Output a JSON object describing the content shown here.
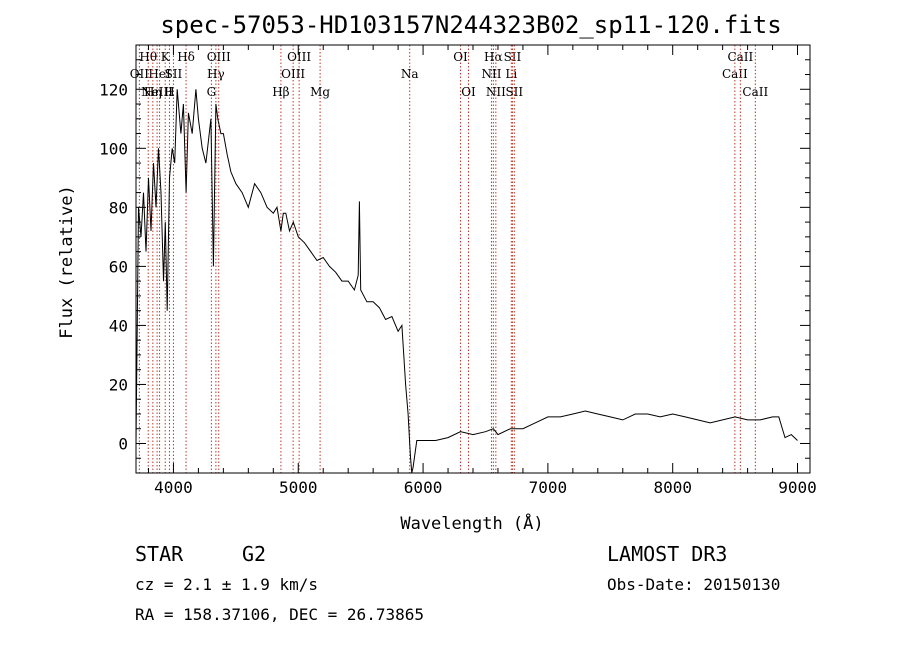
{
  "chart_data": {
    "type": "line",
    "title": "spec-57053-HD103157N244323B02_sp11-120.fits",
    "xlabel": "Wavelength (Å)",
    "ylabel": "Flux (relative)",
    "xlim": [
      3700,
      9100
    ],
    "ylim": [
      -10,
      135
    ],
    "xticks": [
      4000,
      5000,
      6000,
      7000,
      8000,
      9000
    ],
    "yticks": [
      0,
      20,
      40,
      60,
      80,
      100,
      120
    ],
    "series": [
      {
        "name": "spectrum",
        "x": [
          3700,
          3720,
          3740,
          3760,
          3780,
          3800,
          3820,
          3840,
          3860,
          3880,
          3900,
          3920,
          3935,
          3950,
          3968,
          3990,
          4010,
          4030,
          4060,
          4080,
          4101,
          4120,
          4150,
          4180,
          4200,
          4230,
          4260,
          4300,
          4320,
          4340,
          4355,
          4380,
          4400,
          4430,
          4460,
          4500,
          4550,
          4600,
          4650,
          4700,
          4750,
          4800,
          4830,
          4861,
          4880,
          4900,
          4930,
          4960,
          5000,
          5050,
          5100,
          5150,
          5200,
          5250,
          5300,
          5350,
          5400,
          5450,
          5480,
          5490,
          5500,
          5550,
          5600,
          5650,
          5700,
          5750,
          5800,
          5830,
          5860,
          5880,
          5893,
          5900,
          5910,
          5920,
          5950,
          6000,
          6100,
          6200,
          6300,
          6400,
          6500,
          6563,
          6600,
          6700,
          6800,
          6900,
          7000,
          7100,
          7200,
          7300,
          7400,
          7500,
          7600,
          7700,
          7800,
          7900,
          8000,
          8100,
          8200,
          8300,
          8400,
          8500,
          8600,
          8700,
          8800,
          8850,
          8900,
          8950,
          9000
        ],
        "y": [
          0,
          80,
          70,
          85,
          65,
          90,
          72,
          95,
          80,
          100,
          85,
          55,
          75,
          45,
          90,
          100,
          95,
          120,
          105,
          115,
          85,
          112,
          105,
          120,
          110,
          100,
          95,
          110,
          60,
          115,
          110,
          105,
          105,
          98,
          92,
          88,
          85,
          80,
          88,
          85,
          80,
          78,
          80,
          72,
          78,
          78,
          72,
          75,
          70,
          68,
          65,
          62,
          63,
          60,
          58,
          55,
          55,
          52,
          57,
          82,
          52,
          48,
          48,
          46,
          42,
          43,
          38,
          40,
          20,
          10,
          0,
          -5,
          -10,
          -8,
          1,
          1,
          1,
          2,
          4,
          3,
          4,
          5,
          3,
          5,
          5,
          7,
          9,
          9,
          10,
          11,
          10,
          9,
          8,
          10,
          10,
          9,
          10,
          9,
          8,
          7,
          8,
          9,
          8,
          8,
          9,
          9,
          2,
          3,
          1
        ]
      }
    ],
    "line_markers": [
      {
        "wl": 3727,
        "label": "OII",
        "row": 2
      },
      {
        "wl": 3798,
        "label": "Hθ",
        "row": 1
      },
      {
        "wl": 3835,
        "label": "Hη",
        "row": 3
      },
      {
        "wl": 3869,
        "label": "NeIII",
        "row": 3
      },
      {
        "wl": 3889,
        "label": "HeI",
        "row": 2
      },
      {
        "wl": 3934,
        "label": "K",
        "row": 1
      },
      {
        "wl": 3968,
        "label": "H",
        "row": 3
      },
      {
        "wl": 4000,
        "label": "SII",
        "row": 2
      },
      {
        "wl": 4101,
        "label": "Hδ",
        "row": 1
      },
      {
        "wl": 4304,
        "label": "G",
        "row": 3
      },
      {
        "wl": 4340,
        "label": "Hγ",
        "row": 2
      },
      {
        "wl": 4363,
        "label": "OIII",
        "row": 1
      },
      {
        "wl": 4861,
        "label": "Hβ",
        "row": 3
      },
      {
        "wl": 4959,
        "label": "OIII",
        "row": 2
      },
      {
        "wl": 5007,
        "label": "OIII",
        "row": 1
      },
      {
        "wl": 5175,
        "label": "Mg",
        "row": 3
      },
      {
        "wl": 5893,
        "label": "Na",
        "row": 2
      },
      {
        "wl": 6300,
        "label": "OI",
        "row": 1
      },
      {
        "wl": 6364,
        "label": "OI",
        "row": 3
      },
      {
        "wl": 6548,
        "label": "NII",
        "row": 2
      },
      {
        "wl": 6563,
        "label": "Hα",
        "row": 1
      },
      {
        "wl": 6583,
        "label": "NII",
        "row": 3
      },
      {
        "wl": 6707,
        "label": "Li",
        "row": 2
      },
      {
        "wl": 6716,
        "label": "SII",
        "row": 1
      },
      {
        "wl": 6731,
        "label": "SII",
        "row": 3
      },
      {
        "wl": 8498,
        "label": "CaII",
        "row": 2
      },
      {
        "wl": 8542,
        "label": "CaII",
        "row": 1
      },
      {
        "wl": 8662,
        "label": "CaII",
        "row": 3
      }
    ]
  },
  "info": {
    "object_class": "STAR",
    "subclass": "G2",
    "redshift": "cz = 2.1 ± 1.9 km/s",
    "coords": "RA = 158.37106, DEC =  26.73865",
    "survey": "LAMOST DR3",
    "obs_date": "Obs-Date: 20150130"
  }
}
